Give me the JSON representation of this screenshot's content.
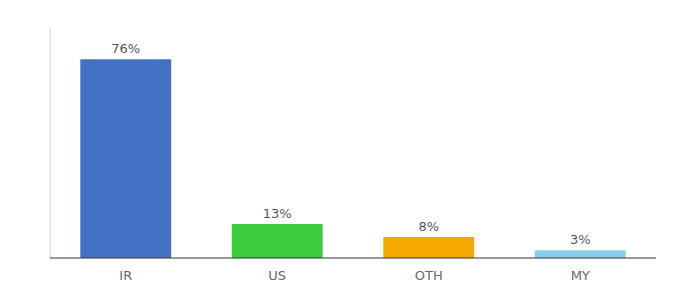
{
  "chart_data": {
    "type": "bar",
    "categories": [
      "IR",
      "US",
      "OTH",
      "MY"
    ],
    "values": [
      76,
      13,
      8,
      3
    ],
    "value_labels": [
      "76%",
      "13%",
      "8%",
      "3%"
    ],
    "colors": [
      "#4472c4",
      "#3dcc3d",
      "#f5a800",
      "#87ceeb"
    ],
    "ylim": [
      0,
      88
    ],
    "data_labels": true,
    "tick_labels": "x"
  }
}
